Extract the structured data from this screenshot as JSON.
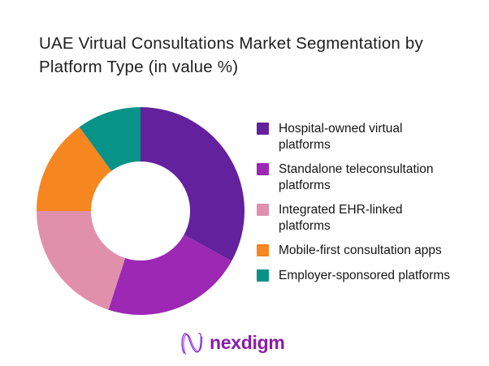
{
  "page": {
    "background": "#ffffff"
  },
  "title": {
    "line1": "UAE Virtual Consultations Market Segmentation by",
    "line2": "Platform Type (in value %)",
    "full": "UAE Virtual Consultations Market Segmentation by Platform Type (in value %)"
  },
  "chart_data": {
    "type": "pie",
    "subtype": "donut",
    "title": "UAE Virtual Consultations Market Segmentation by Platform Type (in value %)",
    "units": "value %",
    "categories": [
      "Hospital-owned virtual platforms",
      "Standalone teleconsultation platforms",
      "Integrated EHR-linked platforms",
      "Mobile-first consultation apps",
      "Employer-sponsored platforms"
    ],
    "values": [
      33,
      22,
      20,
      15,
      10
    ],
    "colors": [
      "#64219E",
      "#9C28B4",
      "#E190AC",
      "#F6861F",
      "#079387"
    ],
    "start_angle_deg": 0,
    "direction": "clockwise",
    "inner_radius_ratio": 0.48,
    "legend_position": "right",
    "data_labels": "none"
  },
  "legend": {
    "items": [
      {
        "lines": [
          "Hospital-owned virtual",
          "platforms"
        ],
        "color": "#64219E"
      },
      {
        "lines": [
          "Standalone teleconsultation",
          "platforms"
        ],
        "color": "#9C28B4"
      },
      {
        "lines": [
          "Integrated EHR-linked",
          "platforms"
        ],
        "color": "#E190AC"
      },
      {
        "lines": [
          "Mobile-first consultation apps"
        ],
        "color": "#F6861F"
      },
      {
        "lines": [
          "Employer-sponsored platforms"
        ],
        "color": "#079387"
      }
    ]
  },
  "logo": {
    "text": "nexdigm",
    "color": "#8A1BA8",
    "mark_colors": [
      "#6D28D9",
      "#B01BD0"
    ]
  }
}
